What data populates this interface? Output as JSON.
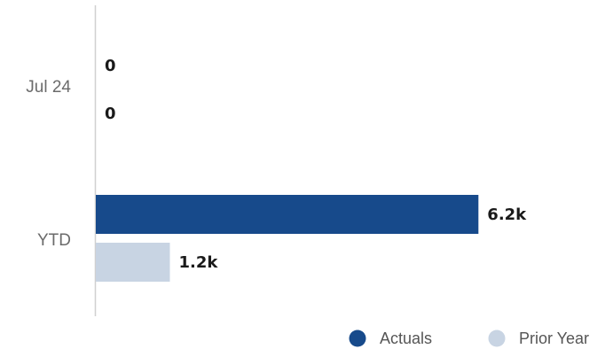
{
  "chart_data": {
    "type": "bar",
    "orientation": "horizontal",
    "categories": [
      "Jul 24",
      "YTD"
    ],
    "series": [
      {
        "name": "Actuals",
        "color": "#174a8b",
        "values": [
          0,
          6200
        ],
        "labels": [
          "0",
          "6.2k"
        ]
      },
      {
        "name": "Prior Year",
        "color": "#c8d4e3",
        "values": [
          0,
          1200
        ],
        "labels": [
          "0",
          "1.2k"
        ]
      }
    ],
    "xlim": [
      0,
      6900
    ],
    "grid": false,
    "legend": "bottom-right"
  }
}
